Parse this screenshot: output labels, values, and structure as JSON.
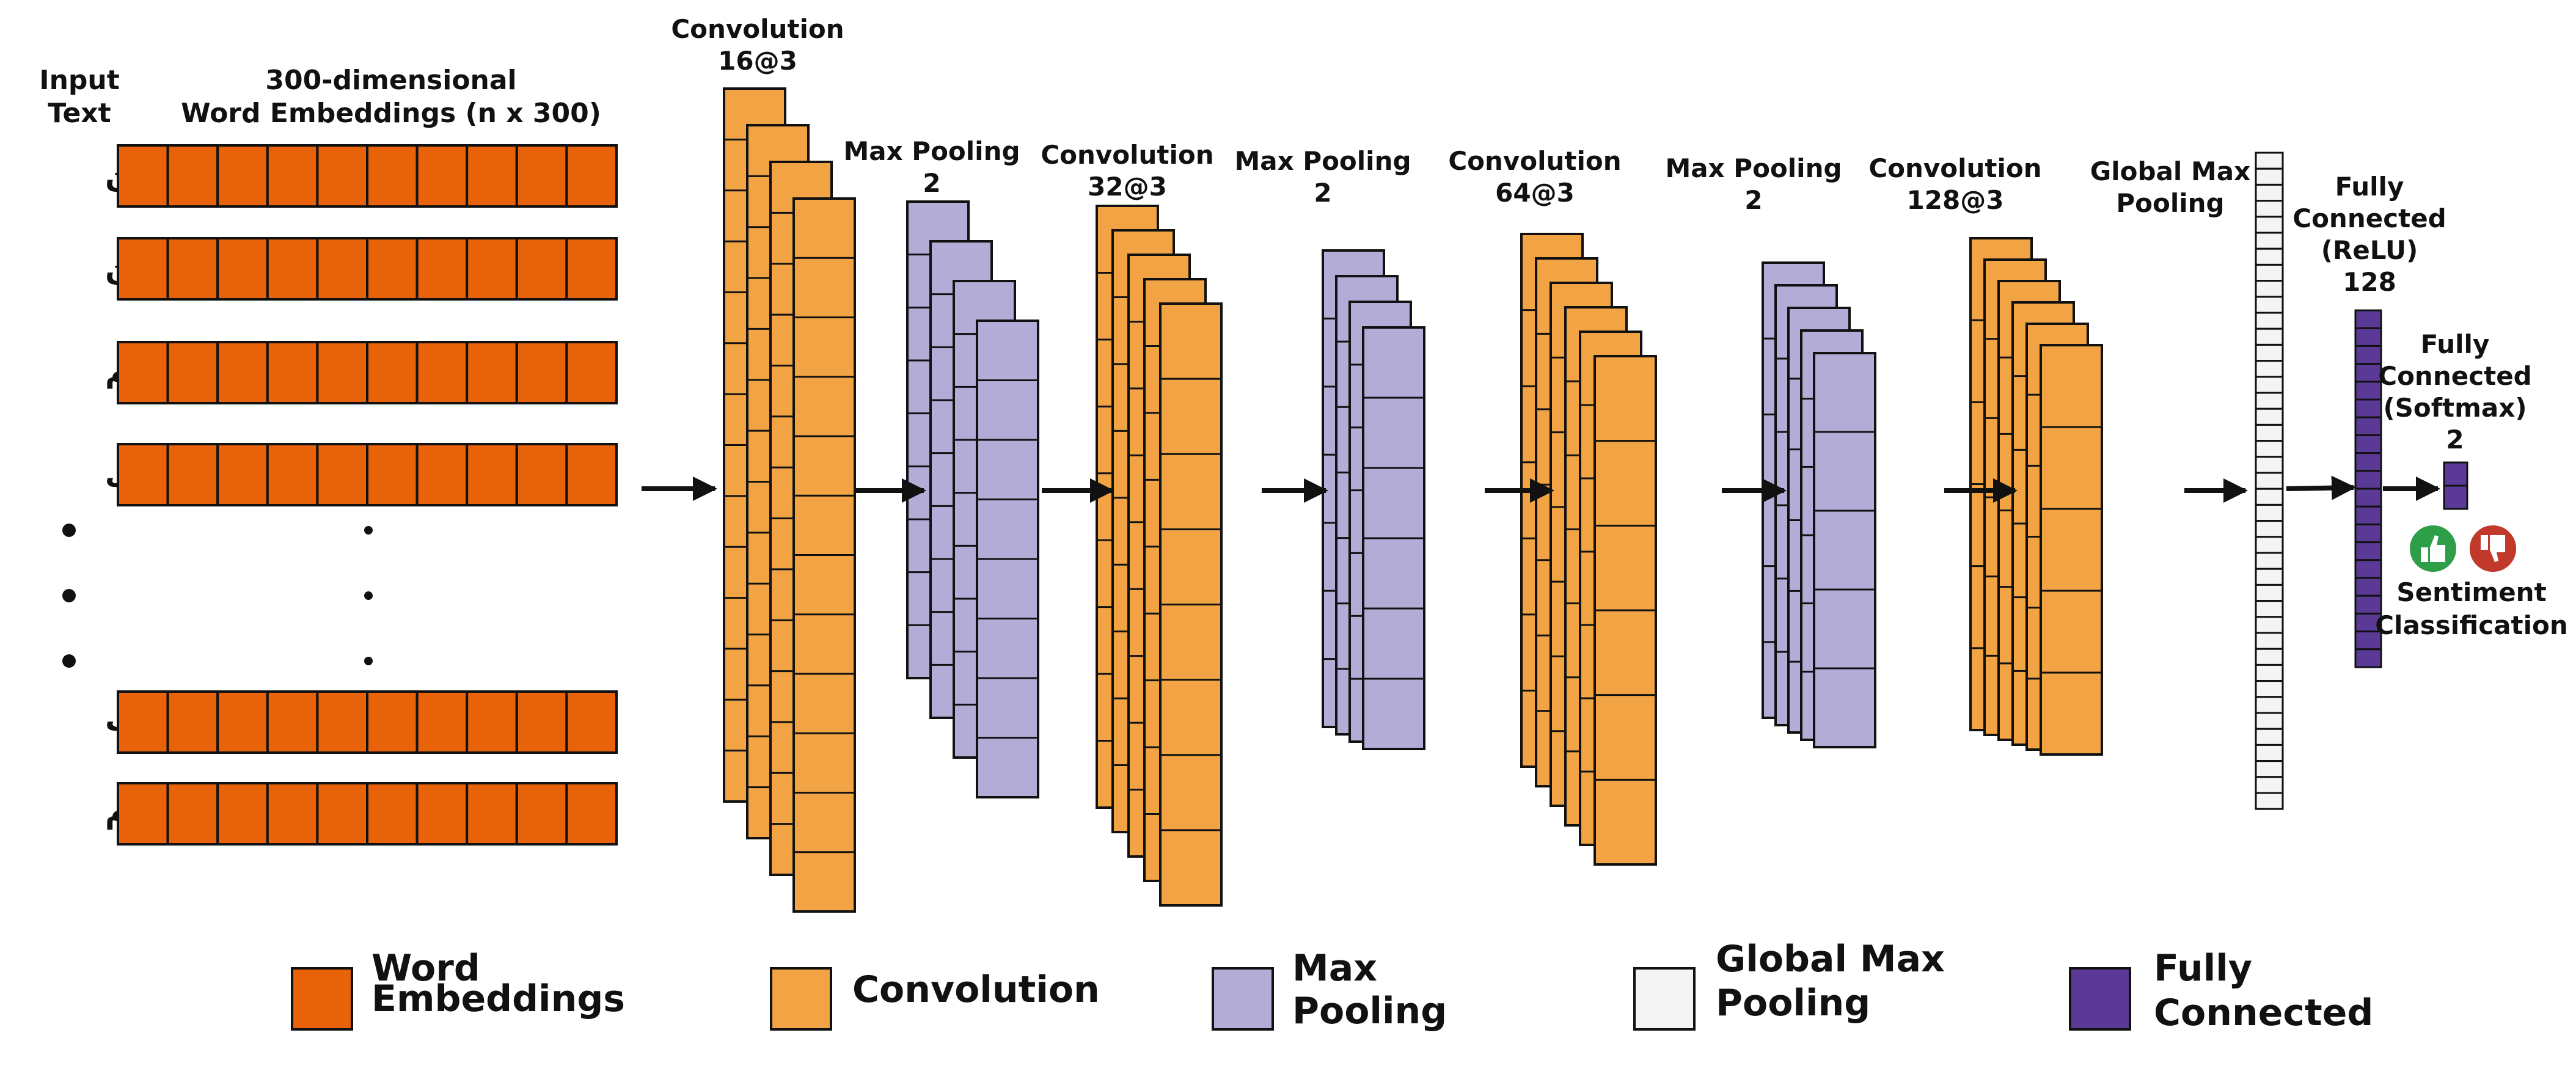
{
  "colors": {
    "word_embeddings": "#E8620A",
    "convolution": "#F2A444",
    "max_pooling": "#B2ACD6",
    "global_max_pooling": "#F4F4F4",
    "fully_connected": "#5B3A97",
    "positive": "#2E9E48",
    "negative": "#C0392B",
    "stroke": "#111111"
  },
  "input": {
    "label_lines": [
      "Input",
      "Text"
    ],
    "embedding_label_lines": [
      "300-dimensional",
      "Word Embeddings (n x 300)"
    ],
    "words": [
      "من",
      "این",
      "فیلم",
      "خیلی",
      "دوست",
      "دارم"
    ],
    "cells_per_row": 10
  },
  "layers": [
    {
      "id": "conv1",
      "type": "convolution",
      "label_lines": [
        "Convolution",
        "16@3"
      ]
    },
    {
      "id": "pool1",
      "type": "max_pooling",
      "label_lines": [
        "Max Pooling",
        "2"
      ]
    },
    {
      "id": "conv2",
      "type": "convolution",
      "label_lines": [
        "Convolution",
        "32@3"
      ]
    },
    {
      "id": "pool2",
      "type": "max_pooling",
      "label_lines": [
        "Max Pooling",
        "2"
      ]
    },
    {
      "id": "conv3",
      "type": "convolution",
      "label_lines": [
        "Convolution",
        "64@3"
      ]
    },
    {
      "id": "pool3",
      "type": "max_pooling",
      "label_lines": [
        "Max Pooling",
        "2"
      ]
    },
    {
      "id": "conv4",
      "type": "convolution",
      "label_lines": [
        "Convolution",
        "128@3"
      ]
    },
    {
      "id": "gmp",
      "type": "global_max_pooling",
      "label_lines": [
        "Global Max",
        "Pooling"
      ]
    },
    {
      "id": "fc1",
      "type": "fully_connected",
      "label_lines": [
        "Fully",
        "Connected",
        "(ReLU)",
        "128"
      ]
    },
    {
      "id": "fc2",
      "type": "fully_connected",
      "label_lines": [
        "Fully",
        "Connected",
        "(Softmax)",
        "2"
      ]
    }
  ],
  "output": {
    "label_lines": [
      "Sentiment",
      "Classification"
    ],
    "icons": [
      "thumbs-up-icon",
      "thumbs-down-icon"
    ]
  },
  "legend": [
    {
      "key": "word_embeddings",
      "label_lines": [
        "Word",
        "Embeddings"
      ]
    },
    {
      "key": "convolution",
      "label_lines": [
        "Convolution"
      ]
    },
    {
      "key": "max_pooling",
      "label_lines": [
        "Max",
        "Pooling"
      ]
    },
    {
      "key": "global_max_pooling",
      "label_lines": [
        "Global Max",
        "Pooling"
      ]
    },
    {
      "key": "fully_connected",
      "label_lines": [
        "Fully",
        "Connected"
      ]
    }
  ]
}
